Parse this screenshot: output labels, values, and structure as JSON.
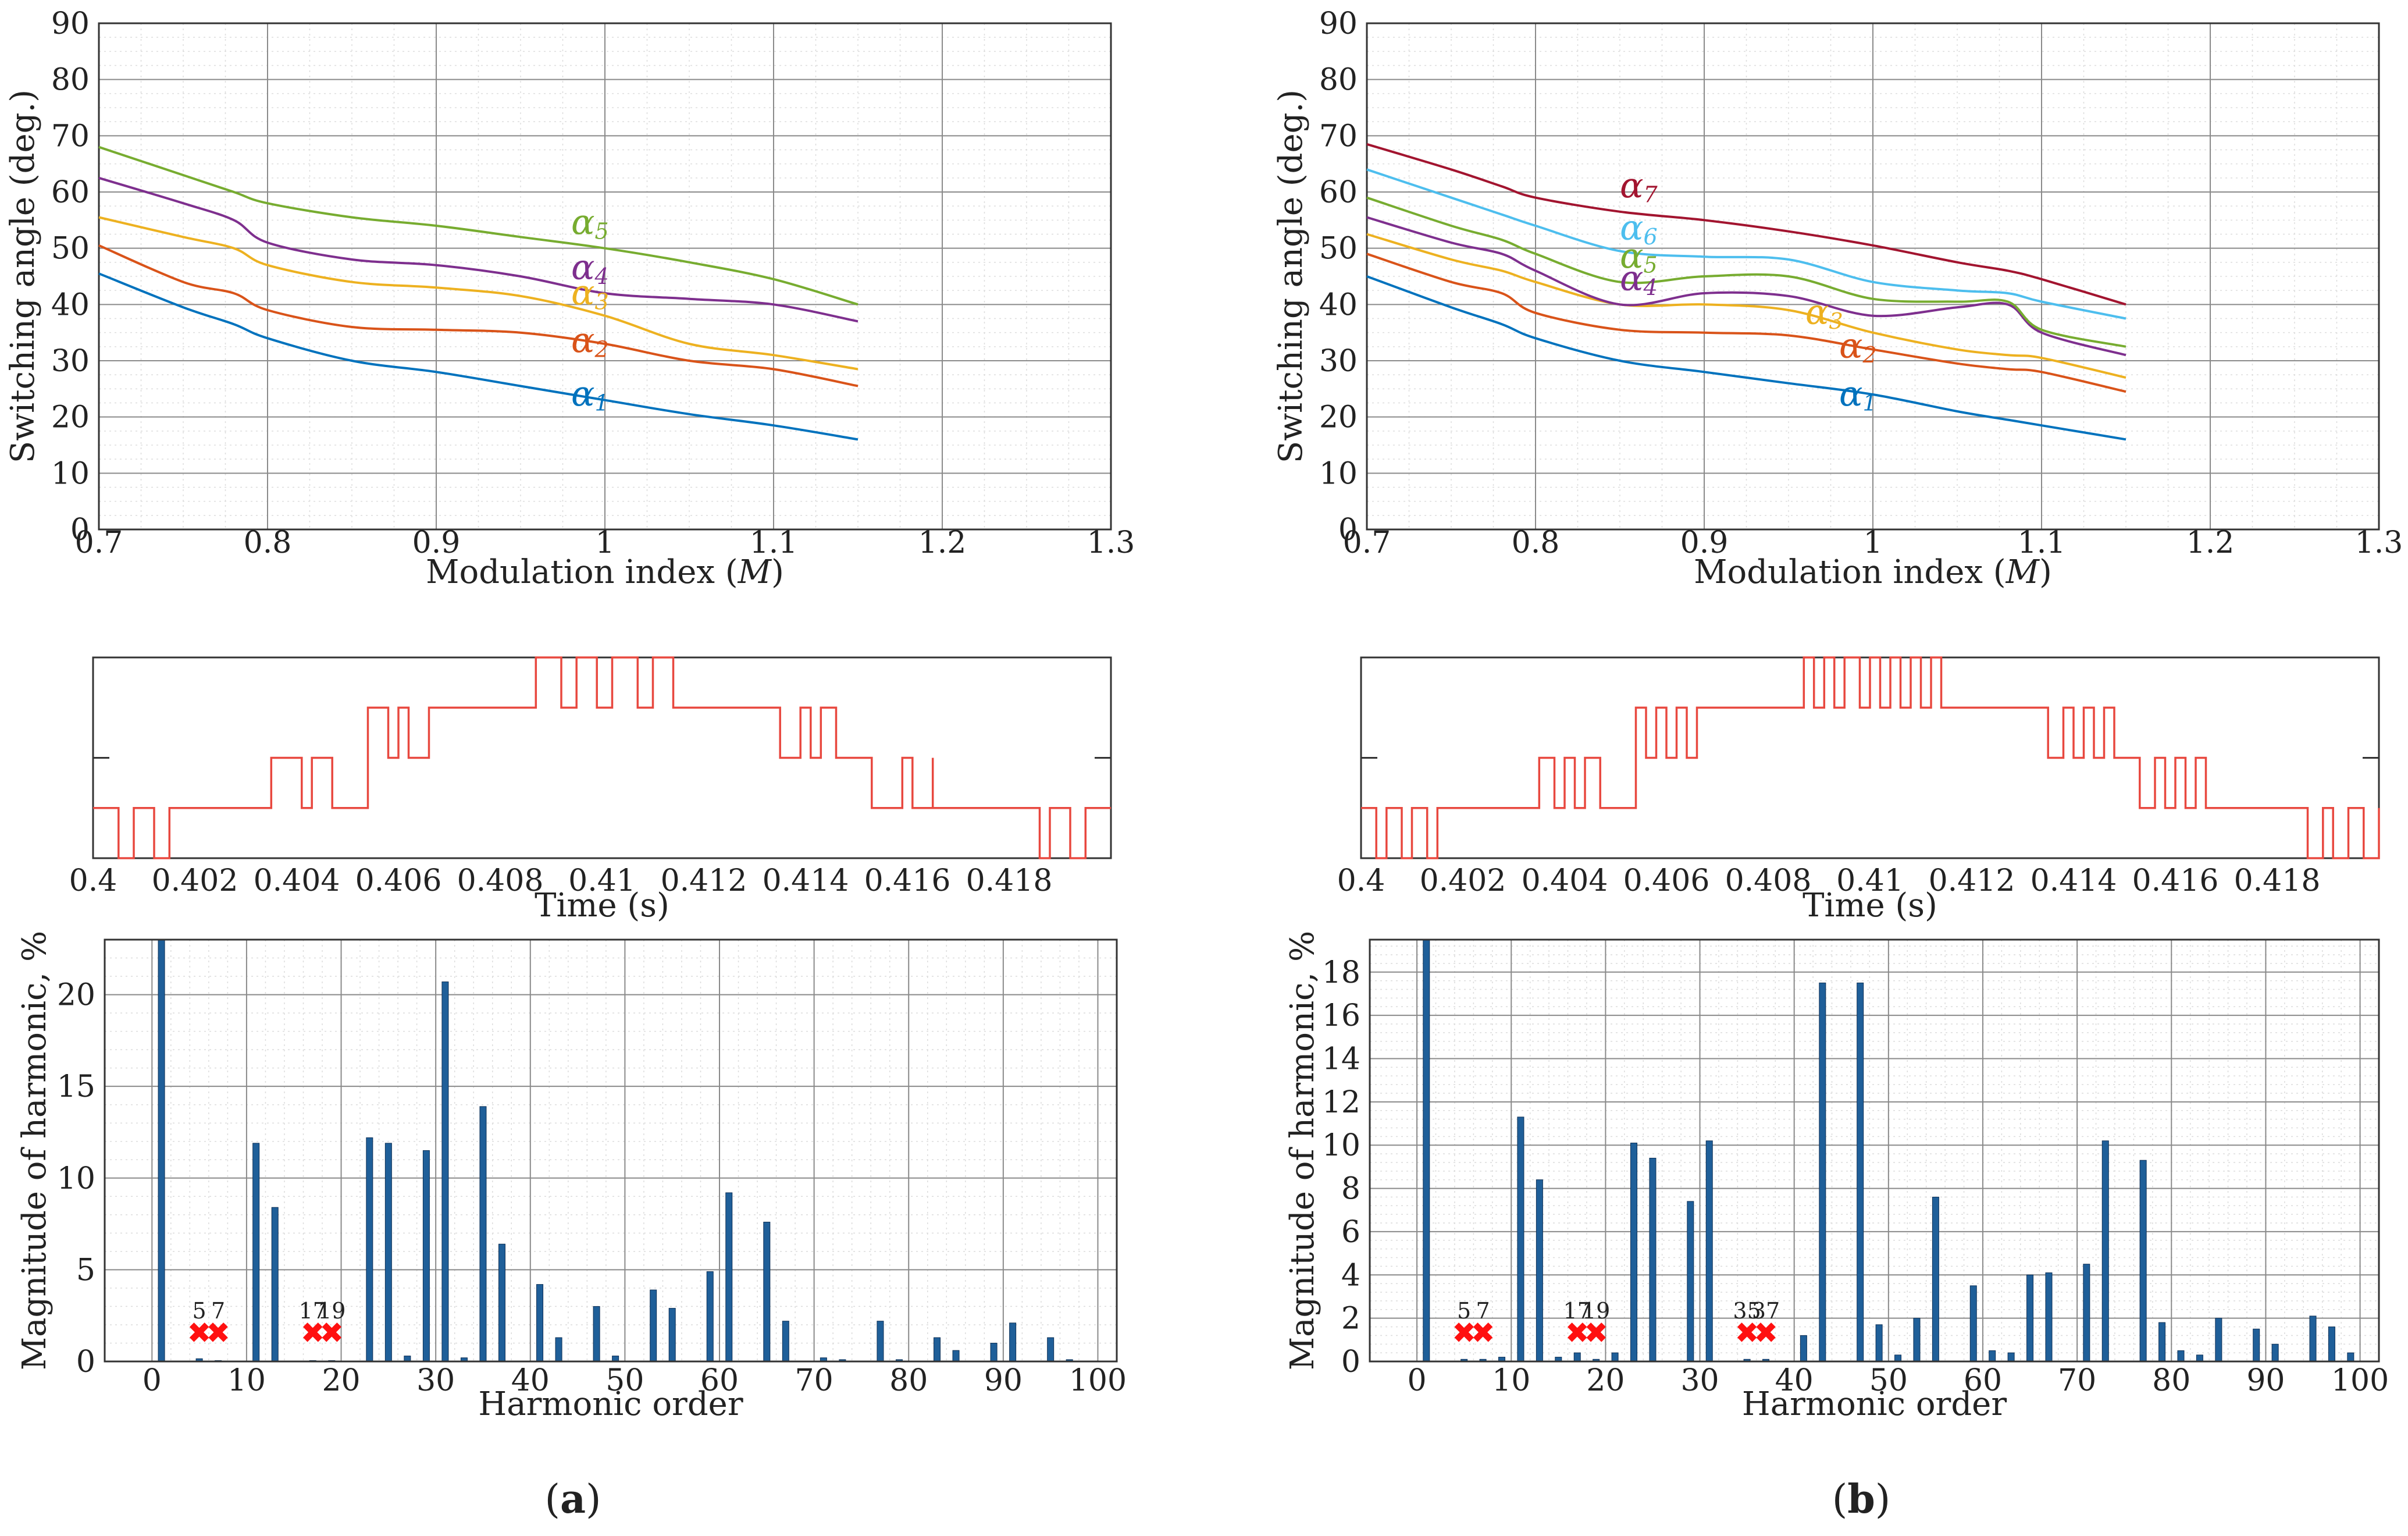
{
  "figure": {
    "panels": [
      {
        "label": "(a)",
        "letter": "a"
      },
      {
        "label": "(b)",
        "letter": "b"
      }
    ]
  },
  "chart_data": [
    {
      "id": "a-angles",
      "type": "line",
      "panel": "a",
      "title": "",
      "xlabel": "Modulation index (M)",
      "ylabel": "Switching angle (deg.)",
      "xlim": [
        0.7,
        1.3
      ],
      "ylim": [
        0,
        90
      ],
      "xticks": [
        0.7,
        0.8,
        0.9,
        1,
        1.1,
        1.2,
        1.3
      ],
      "xtick_labels": [
        "0.7",
        "0.8",
        "0.9",
        "1",
        "1.1",
        "1.2",
        "1.3"
      ],
      "yticks": [
        0,
        10,
        20,
        30,
        40,
        50,
        60,
        70,
        80,
        90
      ],
      "ytick_labels": [
        "0",
        "10",
        "20",
        "30",
        "40",
        "50",
        "60",
        "70",
        "80",
        "90"
      ],
      "x": [
        0.7,
        0.75,
        0.78,
        0.8,
        0.85,
        0.9,
        0.95,
        1.0,
        1.05,
        1.1,
        1.15
      ],
      "series": [
        {
          "name": "α1",
          "sub": "1",
          "color": "#0072BD",
          "label_at": [
            0.98,
            22
          ],
          "values": [
            45.5,
            39.5,
            36.5,
            34,
            30,
            28,
            25.5,
            23,
            20.5,
            18.5,
            16
          ]
        },
        {
          "name": "α2",
          "sub": "2",
          "color": "#D95319",
          "label_at": [
            0.98,
            31.5
          ],
          "values": [
            50.5,
            44,
            42,
            39,
            36,
            35.5,
            35,
            33,
            30,
            28.5,
            25.5
          ]
        },
        {
          "name": "α3",
          "sub": "3",
          "color": "#EDB120",
          "label_at": [
            0.98,
            40
          ],
          "values": [
            55.5,
            52,
            50,
            47,
            44,
            43,
            41.5,
            38,
            33,
            31,
            28.5
          ]
        },
        {
          "name": "α4",
          "sub": "4",
          "color": "#7E2F8E",
          "label_at": [
            0.98,
            44.5
          ],
          "values": [
            62.5,
            58,
            55,
            51,
            48,
            47,
            45,
            42,
            41,
            40,
            37
          ]
        },
        {
          "name": "α5",
          "sub": "5",
          "color": "#77AC30",
          "label_at": [
            0.98,
            52.5
          ],
          "values": [
            68,
            63,
            60,
            58,
            55.5,
            54,
            52,
            50,
            47.5,
            44.5,
            40
          ]
        }
      ]
    },
    {
      "id": "b-angles",
      "type": "line",
      "panel": "b",
      "title": "",
      "xlabel": "Modulation index (M)",
      "ylabel": "Switching angle (deg.)",
      "xlim": [
        0.7,
        1.3
      ],
      "ylim": [
        0,
        90
      ],
      "xticks": [
        0.7,
        0.8,
        0.9,
        1,
        1.1,
        1.2,
        1.3
      ],
      "xtick_labels": [
        "0.7",
        "0.8",
        "0.9",
        "1",
        "1.1",
        "1.2",
        "1.3"
      ],
      "yticks": [
        0,
        10,
        20,
        30,
        40,
        50,
        60,
        70,
        80,
        90
      ],
      "ytick_labels": [
        "0",
        "10",
        "20",
        "30",
        "40",
        "50",
        "60",
        "70",
        "80",
        "90"
      ],
      "x": [
        0.7,
        0.75,
        0.78,
        0.8,
        0.85,
        0.9,
        0.95,
        1.0,
        1.05,
        1.08,
        1.1,
        1.15
      ],
      "series": [
        {
          "name": "α1",
          "sub": "1",
          "color": "#0072BD",
          "label_at": [
            0.98,
            22
          ],
          "values": [
            45,
            39.5,
            36.5,
            34,
            30,
            28,
            26,
            24,
            21,
            19.5,
            18.5,
            16
          ]
        },
        {
          "name": "α2",
          "sub": "2",
          "color": "#D95319",
          "label_at": [
            0.98,
            30.5
          ],
          "values": [
            49,
            44,
            42,
            38.5,
            35.5,
            35,
            34.5,
            32,
            29.5,
            28.5,
            28,
            24.5
          ]
        },
        {
          "name": "α3",
          "sub": "3",
          "color": "#EDB120",
          "label_at": [
            0.96,
            36.5
          ],
          "values": [
            52.5,
            48,
            46,
            44,
            40,
            40,
            39,
            35,
            32,
            31,
            30.5,
            27
          ]
        },
        {
          "name": "α4",
          "sub": "4",
          "color": "#7E2F8E",
          "label_at": [
            0.85,
            42.5
          ],
          "values": [
            55.5,
            51,
            49,
            46,
            40,
            42,
            41.5,
            38,
            39.5,
            40,
            35,
            31
          ]
        },
        {
          "name": "α5",
          "sub": "5",
          "color": "#77AC30",
          "label_at": [
            0.85,
            46.5
          ],
          "values": [
            59,
            54,
            51.5,
            49,
            44,
            45,
            45,
            41,
            40.5,
            40.5,
            35.5,
            32.5
          ]
        },
        {
          "name": "α6",
          "sub": "6",
          "color": "#4DBEEE",
          "label_at": [
            0.85,
            51.5
          ],
          "values": [
            64,
            59,
            56,
            54,
            49.5,
            48.5,
            48,
            44,
            42.5,
            42,
            40.5,
            37.5
          ]
        },
        {
          "name": "α7",
          "sub": "7",
          "color": "#A2142F",
          "label_at": [
            0.85,
            59
          ],
          "values": [
            68.5,
            64,
            61,
            59,
            56.5,
            55,
            53,
            50.5,
            47.5,
            46,
            44.5,
            40
          ]
        }
      ]
    },
    {
      "id": "a-wave",
      "type": "line",
      "panel": "a",
      "title": "",
      "xlabel": "Time (s)",
      "ylabel": "",
      "xlim": [
        0.4,
        0.42
      ],
      "ylim": [
        0,
        4
      ],
      "levels": [
        0.0,
        1.0,
        2.0,
        3.0,
        4.0
      ],
      "level_gridlines": [
        2.0
      ],
      "xticks": [
        0.4,
        0.402,
        0.404,
        0.406,
        0.408,
        0.41,
        0.412,
        0.414,
        0.416,
        0.418
      ],
      "xtick_labels": [
        "0.4",
        "0.402",
        "0.404",
        "0.406",
        "0.408",
        "0.41",
        "0.412",
        "0.414",
        "0.416",
        "0.418"
      ],
      "color": "#E8483F",
      "transitions": [
        [
          0.4,
          1
        ],
        [
          0.4005,
          0
        ],
        [
          0.4008,
          1
        ],
        [
          0.4012,
          0
        ],
        [
          0.4015,
          1
        ],
        [
          0.4035,
          2
        ],
        [
          0.4041,
          1
        ],
        [
          0.4043,
          2
        ],
        [
          0.4047,
          1
        ],
        [
          0.4054,
          3
        ],
        [
          0.4058,
          2
        ],
        [
          0.406,
          3
        ],
        [
          0.4062,
          2
        ],
        [
          0.4066,
          3
        ],
        [
          0.4087,
          4
        ],
        [
          0.4092,
          3
        ],
        [
          0.4095,
          4
        ],
        [
          0.4099,
          3
        ],
        [
          0.4102,
          4
        ],
        [
          0.4107,
          3
        ],
        [
          0.411,
          4
        ],
        [
          0.4114,
          3
        ],
        [
          0.4135,
          2
        ],
        [
          0.4139,
          3
        ],
        [
          0.4141,
          2
        ],
        [
          0.4143,
          3
        ],
        [
          0.4146,
          2
        ],
        [
          0.4153,
          1
        ],
        [
          0.4159,
          2
        ],
        [
          0.4161,
          1
        ],
        [
          0.4165,
          2
        ],
        [
          0.4165,
          1
        ],
        [
          0.4186,
          0
        ],
        [
          0.4188,
          1
        ],
        [
          0.4192,
          0
        ],
        [
          0.4195,
          1
        ],
        [
          0.42,
          1
        ]
      ]
    },
    {
      "id": "b-wave",
      "type": "line",
      "panel": "b",
      "title": "",
      "xlabel": "Time (s)",
      "ylabel": "",
      "xlim": [
        0.4,
        0.42
      ],
      "ylim": [
        0,
        4
      ],
      "levels": [
        0.0,
        1.0,
        2.0,
        3.0,
        4.0
      ],
      "level_gridlines": [
        2.0
      ],
      "xticks": [
        0.4,
        0.402,
        0.404,
        0.406,
        0.408,
        0.41,
        0.412,
        0.414,
        0.416,
        0.418
      ],
      "xtick_labels": [
        "0.4",
        "0.402",
        "0.404",
        "0.406",
        "0.408",
        "0.41",
        "0.412",
        "0.414",
        "0.416",
        "0.418"
      ],
      "color": "#E8483F",
      "transitions": [
        [
          0.4,
          1
        ],
        [
          0.4003,
          0
        ],
        [
          0.4005,
          1
        ],
        [
          0.4008,
          0
        ],
        [
          0.401,
          1
        ],
        [
          0.4013,
          0
        ],
        [
          0.4015,
          1
        ],
        [
          0.4035,
          2
        ],
        [
          0.4038,
          1
        ],
        [
          0.404,
          2
        ],
        [
          0.4042,
          1
        ],
        [
          0.4044,
          2
        ],
        [
          0.4047,
          1
        ],
        [
          0.4054,
          3
        ],
        [
          0.4056,
          2
        ],
        [
          0.4058,
          3
        ],
        [
          0.406,
          2
        ],
        [
          0.4062,
          3
        ],
        [
          0.4064,
          2
        ],
        [
          0.4066,
          3
        ],
        [
          0.4087,
          4
        ],
        [
          0.4089,
          3
        ],
        [
          0.4091,
          4
        ],
        [
          0.4093,
          3
        ],
        [
          0.4095,
          4
        ],
        [
          0.4098,
          3
        ],
        [
          0.41,
          4
        ],
        [
          0.4102,
          3
        ],
        [
          0.4104,
          4
        ],
        [
          0.4106,
          3
        ],
        [
          0.4108,
          4
        ],
        [
          0.411,
          3
        ],
        [
          0.4112,
          4
        ],
        [
          0.4114,
          3
        ],
        [
          0.4135,
          2
        ],
        [
          0.4138,
          3
        ],
        [
          0.414,
          2
        ],
        [
          0.4142,
          3
        ],
        [
          0.4144,
          2
        ],
        [
          0.4146,
          3
        ],
        [
          0.4148,
          2
        ],
        [
          0.4153,
          1
        ],
        [
          0.4156,
          2
        ],
        [
          0.4158,
          1
        ],
        [
          0.416,
          2
        ],
        [
          0.4162,
          1
        ],
        [
          0.4164,
          2
        ],
        [
          0.4166,
          1
        ],
        [
          0.4186,
          0
        ],
        [
          0.4189,
          1
        ],
        [
          0.4191,
          0
        ],
        [
          0.4194,
          1
        ],
        [
          0.4197,
          0
        ],
        [
          0.42,
          1
        ]
      ]
    },
    {
      "id": "a-harm",
      "type": "bar",
      "panel": "a",
      "title": "",
      "xlabel": "Harmonic order",
      "ylabel": "Magnitude of harmonic, %",
      "xlim": [
        -5,
        102
      ],
      "ylim": [
        0,
        23
      ],
      "xticks": [
        0,
        10,
        20,
        30,
        40,
        50,
        60,
        70,
        80,
        90,
        100
      ],
      "xtick_labels": [
        "0",
        "10",
        "20",
        "30",
        "40",
        "50",
        "60",
        "70",
        "80",
        "90",
        "100"
      ],
      "yticks": [
        0,
        5,
        10,
        15,
        20
      ],
      "ytick_labels": [
        "0",
        "5",
        "10",
        "15",
        "20"
      ],
      "bar_color": "#1F5F99",
      "bars": [
        [
          1,
          23.0
        ],
        [
          5,
          0.15
        ],
        [
          7,
          0.05
        ],
        [
          11,
          11.9
        ],
        [
          13,
          8.4
        ],
        [
          17,
          0.05
        ],
        [
          19,
          0.05
        ],
        [
          23,
          12.2
        ],
        [
          25,
          11.9
        ],
        [
          29,
          11.5
        ],
        [
          31,
          20.7
        ],
        [
          35,
          13.9
        ],
        [
          37,
          6.4
        ],
        [
          41,
          4.2
        ],
        [
          43,
          1.3
        ],
        [
          47,
          3.0
        ],
        [
          53,
          3.9
        ],
        [
          55,
          2.9
        ],
        [
          59,
          4.9
        ],
        [
          61,
          9.2
        ],
        [
          65,
          7.6
        ],
        [
          67,
          2.2
        ],
        [
          77,
          2.2
        ],
        [
          83,
          1.3
        ],
        [
          85,
          0.6
        ],
        [
          89,
          1.0
        ],
        [
          91,
          2.1
        ],
        [
          95,
          1.3
        ],
        [
          27,
          0.3
        ],
        [
          33,
          0.2
        ],
        [
          49,
          0.3
        ],
        [
          71,
          0.2
        ],
        [
          73,
          0.1
        ],
        [
          79,
          0.1
        ],
        [
          97,
          0.1
        ]
      ],
      "eliminated": [
        5,
        7,
        17,
        19
      ],
      "eliminated_labels": [
        "5",
        "7",
        "17",
        "19"
      ]
    },
    {
      "id": "b-harm",
      "type": "bar",
      "panel": "b",
      "title": "",
      "xlabel": "Harmonic order",
      "ylabel": "Magnitude of harmonic, %",
      "xlim": [
        -5,
        102
      ],
      "ylim": [
        0,
        19.5
      ],
      "xticks": [
        0,
        10,
        20,
        30,
        40,
        50,
        60,
        70,
        80,
        90,
        100
      ],
      "xtick_labels": [
        "0",
        "10",
        "20",
        "30",
        "40",
        "50",
        "60",
        "70",
        "80",
        "90",
        "100"
      ],
      "yticks": [
        0,
        2,
        4,
        6,
        8,
        10,
        12,
        14,
        16,
        18
      ],
      "ytick_labels": [
        "0",
        "2",
        "4",
        "6",
        "8",
        "10",
        "12",
        "14",
        "16",
        "18"
      ],
      "bar_color": "#1F5F99",
      "bars": [
        [
          1,
          19.5
        ],
        [
          5,
          0.1
        ],
        [
          7,
          0.1
        ],
        [
          9,
          0.2
        ],
        [
          11,
          11.3
        ],
        [
          13,
          8.4
        ],
        [
          15,
          0.2
        ],
        [
          17,
          0.4
        ],
        [
          19,
          0.1
        ],
        [
          21,
          0.4
        ],
        [
          23,
          10.1
        ],
        [
          25,
          9.4
        ],
        [
          29,
          7.4
        ],
        [
          31,
          10.2
        ],
        [
          35,
          0.1
        ],
        [
          37,
          0.1
        ],
        [
          41,
          1.2
        ],
        [
          43,
          17.5
        ],
        [
          47,
          17.5
        ],
        [
          49,
          1.7
        ],
        [
          51,
          0.3
        ],
        [
          53,
          2.0
        ],
        [
          55,
          7.6
        ],
        [
          59,
          3.5
        ],
        [
          61,
          0.5
        ],
        [
          63,
          0.4
        ],
        [
          65,
          4.0
        ],
        [
          67,
          4.1
        ],
        [
          71,
          4.5
        ],
        [
          73,
          10.2
        ],
        [
          77,
          9.3
        ],
        [
          79,
          1.8
        ],
        [
          81,
          0.5
        ],
        [
          83,
          0.3
        ],
        [
          85,
          2.0
        ],
        [
          89,
          1.5
        ],
        [
          91,
          0.8
        ],
        [
          95,
          2.1
        ],
        [
          97,
          1.6
        ],
        [
          99,
          0.4
        ]
      ],
      "eliminated": [
        5,
        7,
        17,
        19,
        35,
        37
      ],
      "eliminated_labels": [
        "5",
        "7",
        "17",
        "19",
        "35",
        "37"
      ]
    }
  ]
}
